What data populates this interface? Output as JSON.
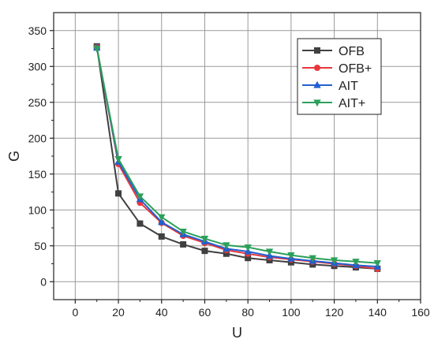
{
  "chart_data": {
    "type": "line",
    "title": "",
    "xlabel": "U",
    "ylabel": "G",
    "xlim": [
      -10,
      160
    ],
    "ylim": [
      -25,
      375
    ],
    "x_ticks": [
      0,
      20,
      40,
      60,
      80,
      100,
      120,
      140,
      160
    ],
    "y_ticks": [
      0,
      50,
      100,
      150,
      200,
      250,
      300,
      350
    ],
    "x_tick_labels": [
      "0",
      "20",
      "40",
      "60",
      "80",
      "100",
      "120",
      "140",
      "160"
    ],
    "y_tick_labels": [
      "0",
      "50",
      "100",
      "150",
      "200",
      "250",
      "300",
      "350"
    ],
    "grid": true,
    "legend_position": "top-right",
    "x": [
      10,
      20,
      30,
      40,
      50,
      60,
      70,
      80,
      90,
      100,
      110,
      120,
      130,
      140
    ],
    "series": [
      {
        "name": "OFB",
        "color": "#404040",
        "marker": "square",
        "values": [
          328,
          123,
          81,
          63,
          52,
          43,
          39,
          33,
          30,
          27,
          24,
          22,
          20,
          18
        ]
      },
      {
        "name": "OFB+",
        "color": "#e8383d",
        "marker": "circle",
        "values": [
          327,
          164,
          110,
          82,
          64,
          54,
          44,
          39,
          34,
          31,
          28,
          25,
          22,
          18
        ]
      },
      {
        "name": "AIT",
        "color": "#2060d0",
        "marker": "triangle-up",
        "values": [
          326,
          167,
          115,
          83,
          66,
          56,
          46,
          42,
          36,
          32,
          29,
          26,
          23,
          21
        ]
      },
      {
        "name": "AIT+",
        "color": "#2ca05a",
        "marker": "triangle-down",
        "values": [
          325,
          171,
          119,
          90,
          70,
          60,
          51,
          48,
          42,
          37,
          33,
          30,
          28,
          26
        ]
      }
    ]
  }
}
